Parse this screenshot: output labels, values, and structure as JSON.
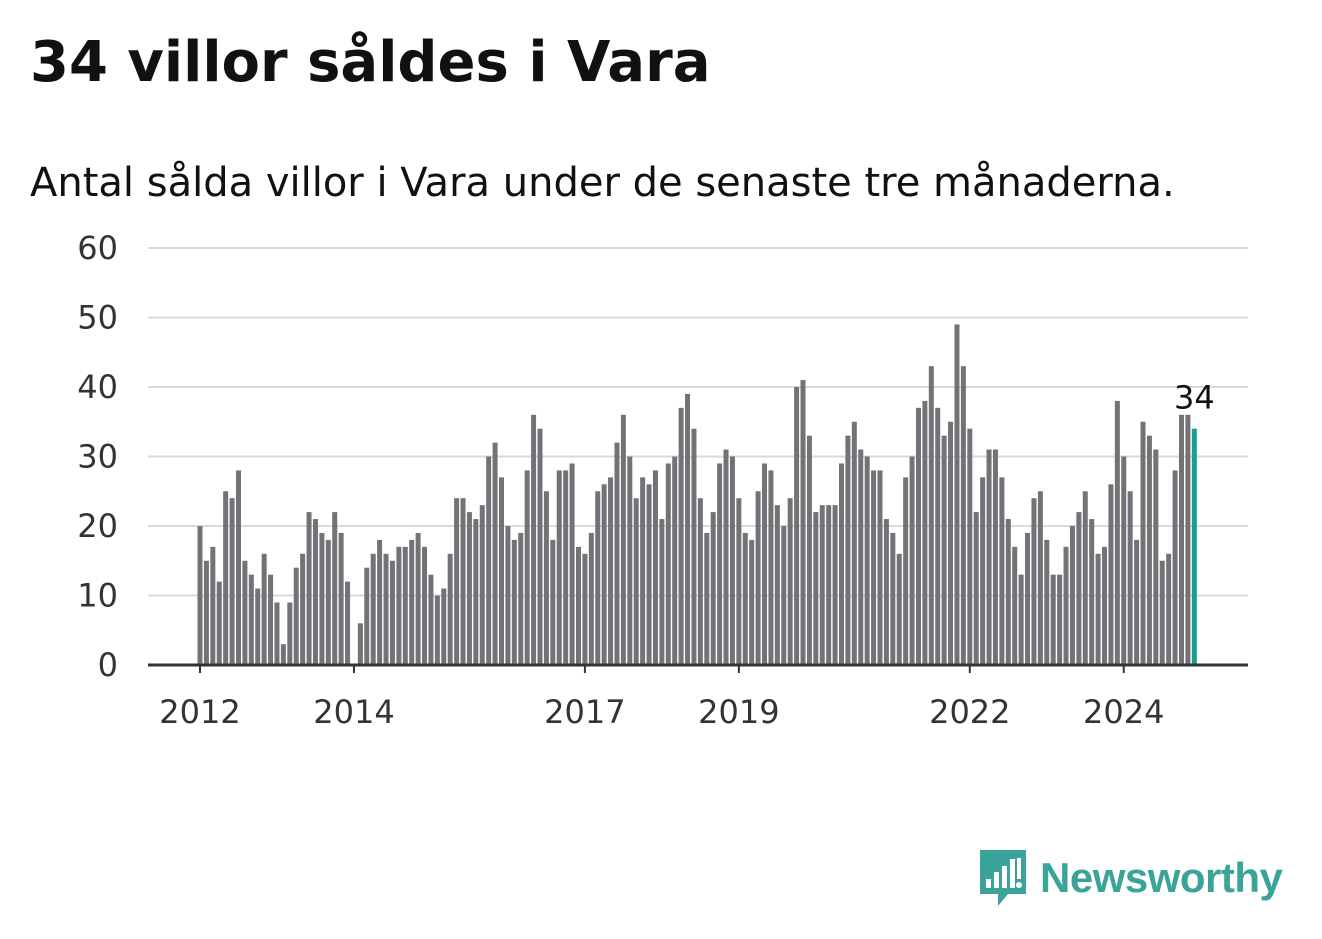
{
  "title": "34 villor såldes i Vara",
  "subtitle": "Antal sålda villor i Vara under de senaste tre månaderna.",
  "brand": {
    "name": "Newsworthy",
    "icon": "bar-chart-speech-bubble-icon",
    "color": "#3aa39a"
  },
  "colors": {
    "bar": "#737277",
    "highlight": "#1a9e92",
    "grid": "#d9d9d9",
    "axis": "#333333"
  },
  "chart_data": {
    "type": "bar",
    "title": "34 villor såldes i Vara",
    "subtitle": "Antal sålda villor i Vara under de senaste tre månaderna.",
    "xlabel": "",
    "ylabel": "",
    "ylim": [
      0,
      60
    ],
    "yticks": [
      0,
      10,
      20,
      30,
      40,
      50,
      60
    ],
    "grid": true,
    "x_start": "2012-01",
    "x_ticks": [
      {
        "label": "2012",
        "index": 0
      },
      {
        "label": "2014",
        "index": 24
      },
      {
        "label": "2017",
        "index": 60
      },
      {
        "label": "2019",
        "index": 84
      },
      {
        "label": "2022",
        "index": 120
      },
      {
        "label": "2024",
        "index": 144
      }
    ],
    "highlight_label": "34",
    "values": [
      20,
      15,
      17,
      12,
      25,
      24,
      28,
      15,
      13,
      11,
      16,
      13,
      9,
      3,
      9,
      14,
      16,
      22,
      21,
      19,
      18,
      22,
      19,
      12,
      0,
      6,
      14,
      16,
      18,
      16,
      15,
      17,
      17,
      18,
      19,
      17,
      13,
      10,
      11,
      16,
      24,
      24,
      22,
      21,
      23,
      30,
      32,
      27,
      20,
      18,
      19,
      28,
      36,
      34,
      25,
      18,
      28,
      28,
      29,
      17,
      16,
      19,
      25,
      26,
      27,
      32,
      36,
      30,
      24,
      27,
      26,
      28,
      21,
      29,
      30,
      37,
      39,
      34,
      24,
      19,
      22,
      29,
      31,
      30,
      24,
      19,
      18,
      25,
      29,
      28,
      23,
      20,
      24,
      40,
      41,
      33,
      22,
      23,
      23,
      23,
      29,
      33,
      35,
      31,
      30,
      28,
      28,
      21,
      19,
      16,
      27,
      30,
      37,
      38,
      43,
      37,
      33,
      35,
      49,
      43,
      34,
      22,
      27,
      31,
      31,
      27,
      21,
      17,
      13,
      19,
      24,
      25,
      18,
      13,
      13,
      17,
      20,
      22,
      25,
      21,
      16,
      17,
      26,
      38,
      30,
      25,
      18,
      35,
      33,
      31,
      15,
      16,
      28,
      36,
      36,
      34
    ]
  }
}
